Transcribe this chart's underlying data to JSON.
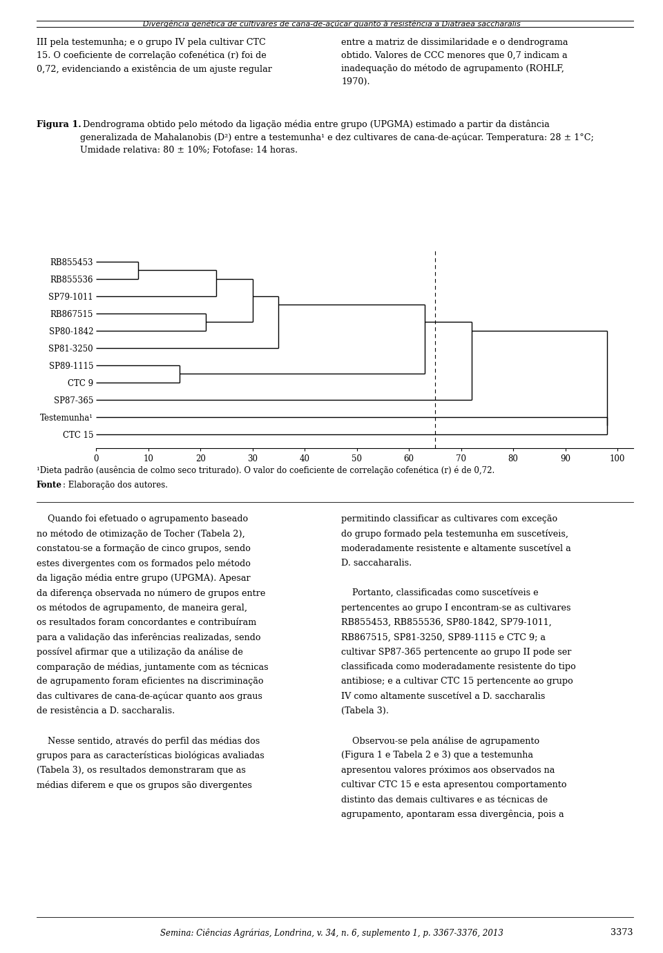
{
  "header_title": "Divergência genética de cultivares de cana-de-açúcar quanto à resistência a Diatraea saccharalis",
  "dendrogram_labels": [
    "RB855453",
    "RB855536",
    "SP79-1011",
    "RB867515",
    "SP80-1842",
    "SP81-3250",
    "SP89-1115",
    "CTC 9",
    "SP87-365",
    "Testemunha¹",
    "CTC 15"
  ],
  "dashed_line_x": 65,
  "x_ticks": [
    0,
    10,
    20,
    30,
    40,
    50,
    60,
    70,
    80,
    90,
    100
  ],
  "footnote1": "¹Dieta padrão (ausência de colmo seco triturado). O valor do coeficiente de correlação cofenética (r) é de 0,72.",
  "footnote2_bold": "Fonte",
  "footnote2_rest": ": Elaboração dos autores.",
  "footer_text": "Semina: Ciências Agrárias, Londrina, v. 34, n. 6, suplemento 1, p. 3367-3376, 2013",
  "page_number": "3373",
  "bg_color": "#ffffff",
  "text_color": "#000000",
  "merge_1_2": 8,
  "merge_12_3": 23,
  "merge_4_5": 21,
  "merge_123_45": 30,
  "merge_45_6": 35,
  "merge_7_8": 16,
  "merge_big": 63,
  "merge_sp87": 72,
  "merge_final": 98
}
